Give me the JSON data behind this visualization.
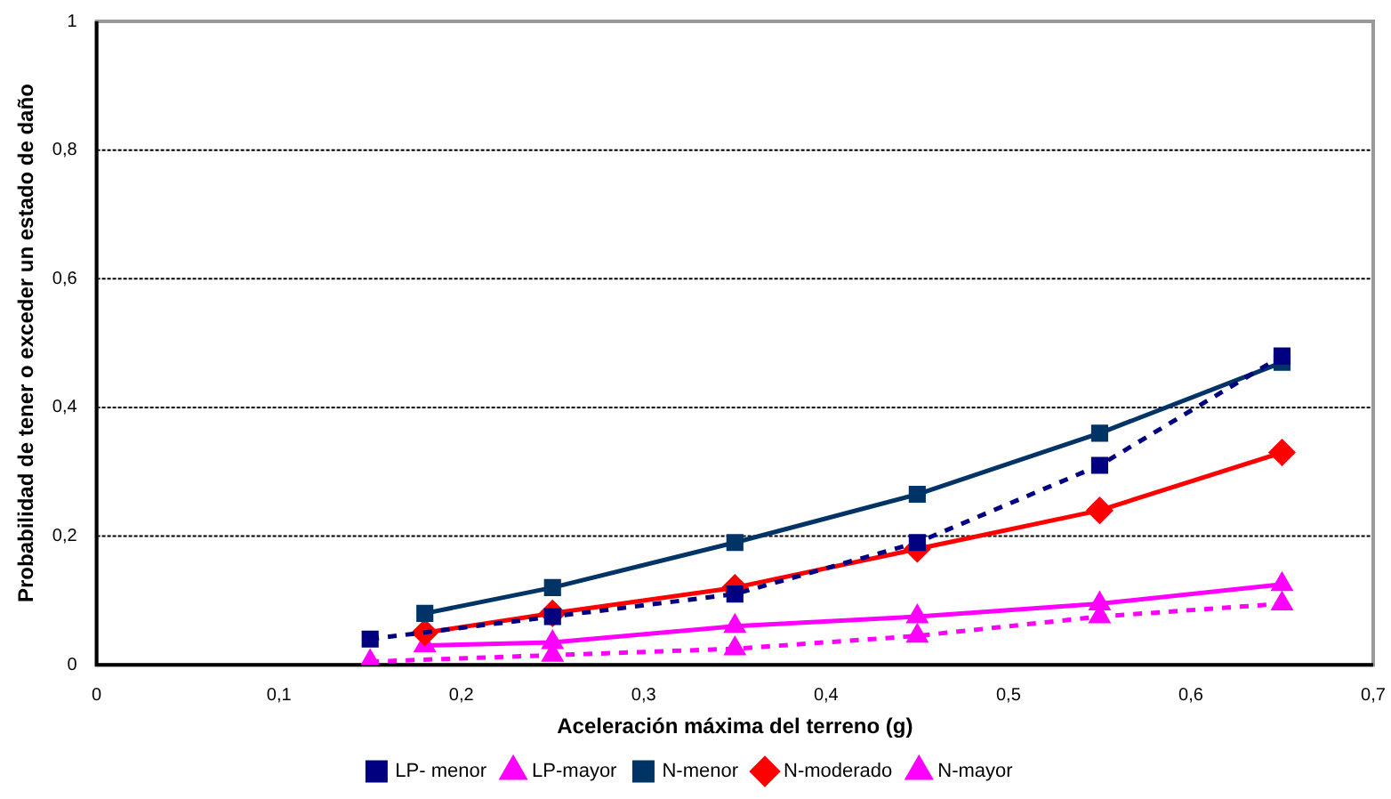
{
  "chart_data": {
    "type": "line",
    "xlabel": "Aceleración máxima del terreno (g)",
    "ylabel": "Probabilidad de tener o exceder un estado de daño",
    "xlim": [
      0,
      0.7
    ],
    "xticks": [
      0,
      {
        "value": 0.1,
        "label": "0,1"
      },
      {
        "value": 0.2,
        "label": "0,2"
      },
      {
        "value": 0.3,
        "label": "0,3"
      },
      {
        "value": 0.4,
        "label": "0,4"
      },
      {
        "value": 0.5,
        "label": "0,5"
      },
      {
        "value": 0.6,
        "label": "0,6"
      },
      {
        "value": 0.7,
        "label": "0,7"
      }
    ],
    "ylim": [
      0,
      1
    ],
    "yticks": [
      0,
      {
        "value": 0.2,
        "label": "0,2"
      },
      {
        "value": 0.4,
        "label": "0,4"
      },
      {
        "value": 0.6,
        "label": "0,6"
      },
      {
        "value": 0.8,
        "label": "0,8"
      },
      1
    ],
    "grid": "y",
    "legend": "bottom",
    "series": [
      {
        "name": "LP- menor",
        "color": "#000080",
        "marker": "square",
        "line_style": "dashed",
        "x": [
          0.15,
          0.25,
          0.35,
          0.45,
          0.55,
          0.65
        ],
        "values": [
          0.04,
          0.075,
          0.11,
          0.19,
          0.31,
          0.48
        ]
      },
      {
        "name": "LP-mayor",
        "color": "#ff00ff",
        "marker": "triangle",
        "line_style": "dashed",
        "x": [
          0.15,
          0.25,
          0.35,
          0.45,
          0.55,
          0.65
        ],
        "values": [
          0.005,
          0.015,
          0.025,
          0.045,
          0.075,
          0.095
        ]
      },
      {
        "name": "N-menor",
        "color": "#003366",
        "marker": "square",
        "line_style": "solid",
        "x": [
          0.18,
          0.25,
          0.35,
          0.45,
          0.55,
          0.65
        ],
        "values": [
          0.08,
          0.12,
          0.19,
          0.265,
          0.36,
          0.47
        ]
      },
      {
        "name": "N-moderado",
        "color": "#ff0000",
        "marker": "diamond",
        "line_style": "solid",
        "x": [
          0.18,
          0.25,
          0.35,
          0.45,
          0.55,
          0.65
        ],
        "values": [
          0.05,
          0.08,
          0.12,
          0.18,
          0.24,
          0.33
        ]
      },
      {
        "name": "N-mayor",
        "color": "#ff00ff",
        "marker": "triangle",
        "line_style": "solid",
        "x": [
          0.18,
          0.25,
          0.35,
          0.45,
          0.55,
          0.65
        ],
        "values": [
          0.03,
          0.035,
          0.06,
          0.075,
          0.095,
          0.125
        ]
      }
    ]
  }
}
